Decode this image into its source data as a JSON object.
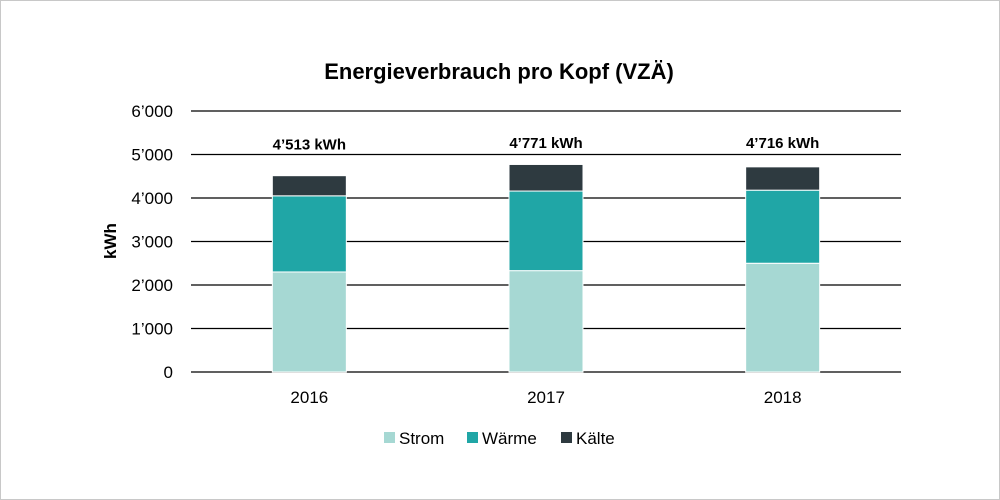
{
  "chart_data": {
    "type": "bar",
    "stacked": true,
    "title": "Energieverbrauch pro Kopf (VZÄ)",
    "xlabel": "",
    "ylabel": "kWh",
    "ylim": [
      0,
      6000
    ],
    "yticks": [
      0,
      1000,
      2000,
      3000,
      4000,
      5000,
      6000
    ],
    "ytick_labels": [
      "0",
      "1’000",
      "2’000",
      "3’000",
      "4’000",
      "5’000",
      "6’000"
    ],
    "grid": true,
    "legend_position": "bottom",
    "categories": [
      "2016",
      "2017",
      "2018"
    ],
    "series": [
      {
        "name": "Strom",
        "color": "#a6d8d3",
        "values": [
          2300,
          2330,
          2500
        ]
      },
      {
        "name": "Wärme",
        "color": "#20a6a6",
        "values": [
          1750,
          1830,
          1680
        ]
      },
      {
        "name": "Kälte",
        "color": "#2e3a40",
        "values": [
          463,
          611,
          536
        ]
      }
    ],
    "totals": [
      "4’513 kWh",
      "4’771 kWh",
      "4’716 kWh"
    ]
  }
}
